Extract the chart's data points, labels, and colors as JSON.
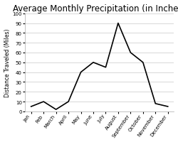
{
  "title": "Average Monthly Precipitation (in Inches)",
  "ylabel": "Distance Traveled (Miles)",
  "months": [
    "Jan",
    "Feb",
    "March",
    "April",
    "May",
    "June",
    "July",
    "August",
    "September",
    "October",
    "November",
    "December"
  ],
  "values": [
    5,
    10,
    2,
    10,
    40,
    50,
    45,
    90,
    60,
    50,
    8,
    5
  ],
  "ylim": [
    0,
    100
  ],
  "yticks": [
    0,
    10,
    20,
    30,
    40,
    50,
    60,
    70,
    80,
    90,
    100
  ],
  "line_color": "#000000",
  "bg_color": "#ffffff",
  "grid_color": "#c8c8c8",
  "title_fontsize": 8.5,
  "label_fontsize": 5.5,
  "tick_fontsize": 5,
  "line_width": 1.2
}
